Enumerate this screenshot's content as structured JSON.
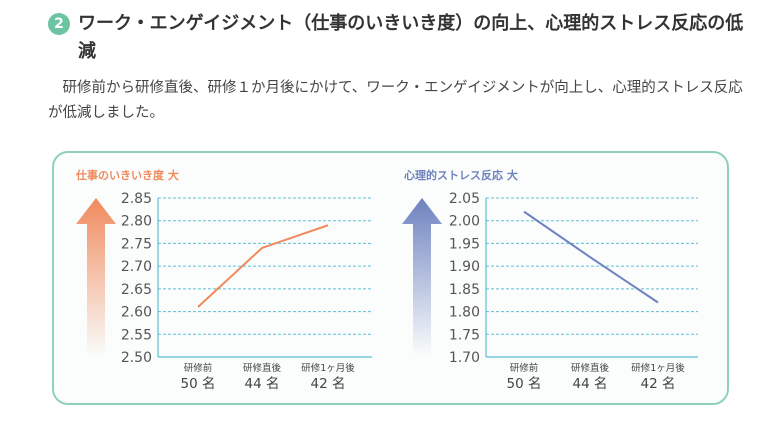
{
  "section": {
    "number": "2",
    "title": "ワーク・エンゲイジメント（仕事のいきいき度）の向上、心理的ストレス反応の低減",
    "body": "研修前から研修直後、研修１か月後にかけて、ワーク・エンゲイジメントが向上し、心理的ストレス反応が低減しました。"
  },
  "colors": {
    "badge": "#6cc4a1",
    "panel_border": "#8fd1b8",
    "gridline": "#5bbfd6",
    "axis": "#5bbfd6",
    "engagement": "#f08a5d",
    "stress": "#6f82c0"
  },
  "chart_data": [
    {
      "type": "line",
      "title": "仕事のいきいき度",
      "title_suffix": "大",
      "title_color": "#f08a5d",
      "categories": [
        "研修前",
        "研修直後",
        "研修1ヶ月後"
      ],
      "counts": [
        "50 名",
        "44 名",
        "42 名"
      ],
      "series": [
        {
          "values": [
            2.61,
            2.74,
            2.79
          ]
        }
      ],
      "ylim": [
        2.5,
        2.85
      ],
      "yticks": [
        "2.85",
        "2.80",
        "2.75",
        "2.70",
        "2.65",
        "2.60",
        "2.55",
        "2.50"
      ],
      "grid": true
    },
    {
      "type": "line",
      "title": "心理的ストレス反応",
      "title_suffix": "大",
      "title_color": "#6f82c0",
      "categories": [
        "研修前",
        "研修直後",
        "研修1ヶ月後"
      ],
      "counts": [
        "50 名",
        "44 名",
        "42 名"
      ],
      "series": [
        {
          "values": [
            2.02,
            1.92,
            1.82
          ]
        }
      ],
      "ylim": [
        1.7,
        2.05
      ],
      "yticks": [
        "2.05",
        "2.00",
        "1.95",
        "1.90",
        "1.85",
        "1.80",
        "1.75",
        "1.70"
      ],
      "grid": true
    }
  ]
}
